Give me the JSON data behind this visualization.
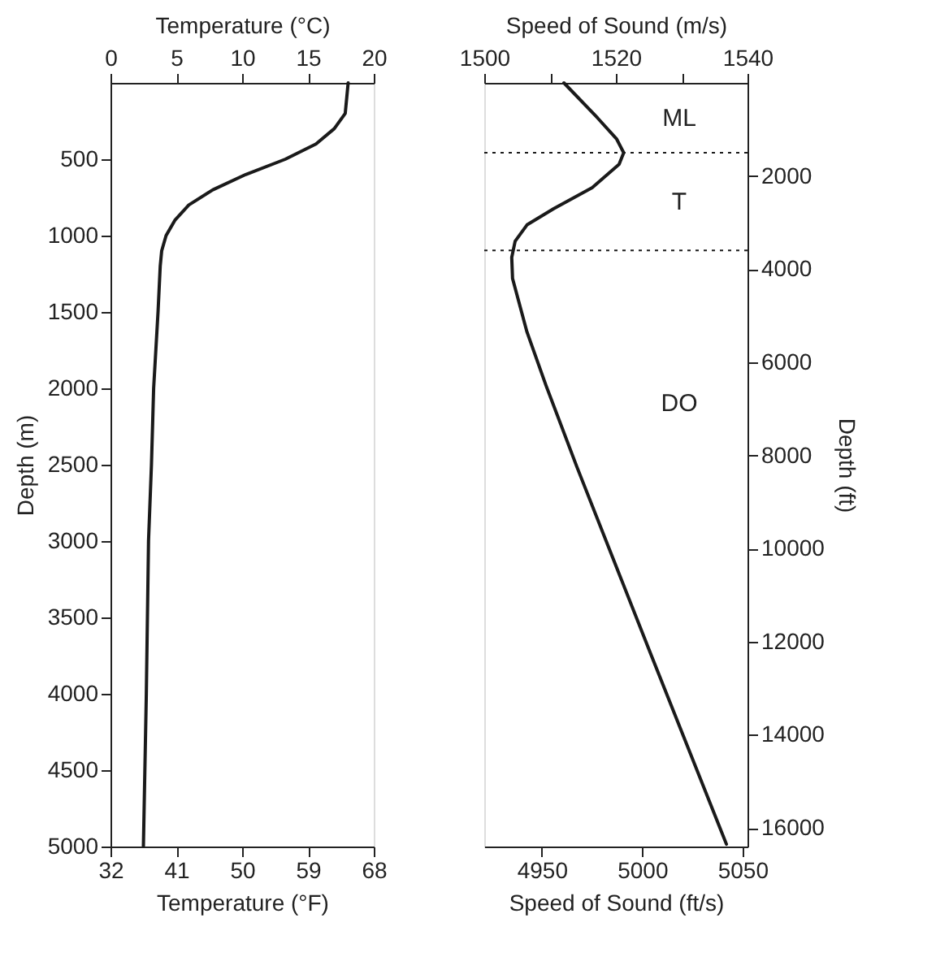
{
  "chart_data": [
    {
      "type": "line",
      "xlabel": "Temperature (°F)",
      "x2label": "Temperature (°C)",
      "ylabel": "Depth (m)",
      "xlim": [
        32,
        68
      ],
      "xticks": [
        32,
        41,
        50,
        59,
        68
      ],
      "x2lim": [
        0,
        20
      ],
      "x2ticks": [
        0,
        5,
        10,
        15,
        20
      ],
      "ylim": [
        5000,
        0
      ],
      "yticks": [
        500,
        1000,
        1500,
        2000,
        2500,
        3000,
        3500,
        4000,
        4500,
        5000
      ],
      "marker": "none",
      "line_style": "solid",
      "series": [
        {
          "color": "#1a1a1a",
          "x": [
            64.5,
            64.1,
            62.6,
            60.1,
            55.9,
            50.5,
            46.0,
            42.7,
            40.8,
            39.6,
            39.0,
            38.8,
            38.5,
            37.9,
            37.6,
            37.2,
            36.9,
            36.5
          ],
          "values": [
            0,
            200,
            300,
            400,
            500,
            600,
            700,
            800,
            900,
            1000,
            1100,
            1200,
            1500,
            2000,
            2500,
            3000,
            4000,
            5000
          ]
        }
      ]
    },
    {
      "type": "line",
      "xlabel": "Speed of Sound (ft/s)",
      "x2label": "Speed of Sound (m/s)",
      "ylabel": "Depth (ft)",
      "xlim": [
        4921.3,
        5052.5
      ],
      "xticks": [
        4950,
        5000,
        5050
      ],
      "x2lim": [
        1500,
        1540
      ],
      "x2ticks": [
        1500,
        {
          "value": 1510,
          "label": null
        },
        1520,
        {
          "value": 1530,
          "label": null
        },
        1540
      ],
      "ylim": [
        16400,
        0
      ],
      "yticks": [
        2000,
        4000,
        6000,
        8000,
        10000,
        12000,
        14000,
        16000
      ],
      "marker": "none",
      "line_style": "solid",
      "series": [
        {
          "color": "#1a1a1a",
          "x": [
            4961.0,
            4977.7,
            4987.2,
            4990.8,
            4988.5,
            4975.1,
            4956.0,
            4942.6,
            4936.7,
            4935.0,
            4935.4,
            4942.6,
            4952.1,
            4967.5,
            5004.6,
            5042.0
          ],
          "values": [
            0,
            750,
            1200,
            1500,
            1750,
            2250,
            2700,
            3050,
            3400,
            3750,
            4200,
            5350,
            6500,
            8250,
            12300,
            16350
          ]
        }
      ],
      "ref_lines": [
        {
          "axis": "y",
          "value": 1500,
          "line_style": "dotted",
          "color": "#1a1a1a"
        },
        {
          "axis": "y",
          "value": 3600,
          "line_style": "dotted",
          "color": "#1a1a1a"
        }
      ],
      "annotations": [
        "ML",
        "T",
        "DO"
      ]
    }
  ]
}
